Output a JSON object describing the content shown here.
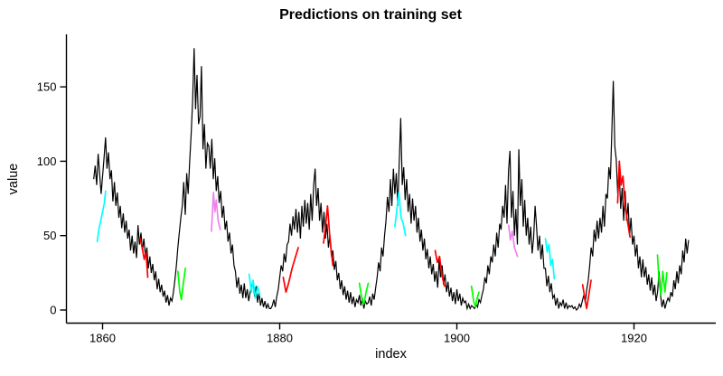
{
  "title": "Predictions on training set",
  "axes": {
    "x_label": "index",
    "y_label": "value"
  },
  "chart_data": {
    "type": "line",
    "title": "Predictions on training set",
    "xlabel": "index",
    "ylabel": "value",
    "xlim": [
      1855.9,
      1929.3
    ],
    "ylim": [
      -8.5,
      185
    ],
    "grid": "off",
    "legend": "none",
    "x_ticks": [
      1860,
      1880,
      1900,
      1920
    ],
    "x_tick_labels": [
      "1860",
      "1880",
      "1900",
      "1920"
    ],
    "y_ticks": [
      0,
      50,
      100,
      150
    ],
    "y_tick_labels": [
      "0",
      "50",
      "100",
      "150"
    ],
    "axis_color": "#000000",
    "main_series": {
      "name": "training-series",
      "color": "#000000",
      "x_start": 1859.0,
      "x_step": 0.166667,
      "values": [
        88,
        97,
        84,
        105,
        92,
        78,
        90,
        102,
        116,
        95,
        106,
        88,
        94,
        73,
        86,
        70,
        79,
        62,
        70,
        55,
        65,
        52,
        60,
        48,
        54,
        40,
        50,
        38,
        46,
        35,
        57,
        44,
        52,
        40,
        48,
        36,
        42,
        28,
        36,
        25,
        31,
        20,
        26,
        14,
        21,
        12,
        17,
        9,
        13,
        5,
        10,
        3,
        8,
        6,
        12,
        20,
        30,
        42,
        52,
        62,
        70,
        86,
        64,
        92,
        78,
        100,
        118,
        140,
        176,
        135,
        158,
        125,
        130,
        164,
        108,
        125,
        95,
        112,
        110,
        95,
        115,
        88,
        102,
        80,
        90,
        72,
        80,
        62,
        70,
        54,
        60,
        46,
        52,
        38,
        44,
        30,
        26,
        15,
        22,
        11,
        17,
        8,
        18,
        8,
        14,
        6,
        12,
        16,
        20,
        9,
        16,
        5,
        12,
        3,
        8,
        2,
        6,
        1,
        4,
        1,
        1,
        3,
        7,
        2,
        9,
        14,
        22,
        30,
        26,
        38,
        32,
        44,
        46,
        58,
        50,
        63,
        54,
        68,
        52,
        66,
        48,
        70,
        56,
        74,
        58,
        72,
        54,
        78,
        60,
        84,
        95,
        70,
        82,
        60,
        72,
        52,
        66,
        48,
        58,
        42,
        50,
        36,
        40,
        27,
        33,
        20,
        25,
        14,
        20,
        10,
        16,
        7,
        13,
        5,
        12,
        4,
        9,
        2,
        7,
        5,
        10,
        3,
        8,
        1,
        6,
        4,
        5,
        9,
        3,
        11,
        7,
        15,
        22,
        32,
        26,
        42,
        36,
        50,
        60,
        76,
        66,
        88,
        70,
        95,
        78,
        92,
        70,
        100,
        129,
        84,
        96,
        74,
        88,
        66,
        78,
        58,
        75,
        60,
        70,
        52,
        62,
        46,
        54,
        40,
        48,
        34,
        41,
        28,
        36,
        24,
        31,
        19,
        26,
        15,
        34,
        22,
        30,
        17,
        24,
        12,
        19,
        9,
        15,
        6,
        12,
        4,
        14,
        6,
        11,
        3,
        8,
        5,
        6,
        1,
        4,
        1,
        3,
        2,
        1,
        4,
        2,
        7,
        5,
        10,
        14,
        22,
        18,
        30,
        24,
        36,
        32,
        44,
        36,
        52,
        42,
        58,
        54,
        70,
        62,
        84,
        58,
        94,
        107,
        62,
        80,
        50,
        68,
        44,
        108,
        70,
        88,
        56,
        74,
        50,
        62,
        44,
        56,
        38,
        48,
        70,
        56,
        40,
        50,
        34,
        44,
        28,
        28,
        16,
        23,
        12,
        18,
        8,
        10,
        3,
        8,
        1,
        5,
        3,
        7,
        1,
        5,
        1,
        3,
        2,
        3,
        1,
        2,
        0,
        1,
        4,
        2,
        6,
        10,
        5,
        14,
        20,
        30,
        42,
        36,
        54,
        46,
        60,
        48,
        62,
        52,
        70,
        56,
        78,
        75,
        96,
        88,
        120,
        154,
        110,
        101,
        78,
        92,
        68,
        82,
        60,
        80,
        60,
        72,
        50,
        62,
        44,
        50,
        36,
        44,
        28,
        36,
        22,
        34,
        22,
        29,
        17,
        24,
        13,
        22,
        10,
        17,
        6,
        12,
        26,
        10,
        2,
        7,
        1,
        5,
        8,
        6,
        12,
        9,
        20,
        14,
        26,
        18,
        30,
        24,
        40,
        32,
        48,
        38,
        47
      ]
    },
    "prediction_segments": [
      {
        "name": "prediction-1860",
        "color": "#00FFFF",
        "points": [
          [
            1859.4,
            46
          ],
          [
            1859.6,
            55
          ],
          [
            1859.8,
            60
          ],
          [
            1860.0,
            66
          ],
          [
            1860.2,
            72
          ],
          [
            1860.35,
            80
          ]
        ]
      },
      {
        "name": "prediction-1864",
        "color": "#FF0000",
        "points": [
          [
            1864.25,
            48
          ],
          [
            1864.5,
            41
          ],
          [
            1864.7,
            34
          ],
          [
            1864.9,
            39
          ],
          [
            1865.1,
            22
          ]
        ]
      },
      {
        "name": "prediction-1868",
        "color": "#00FF00",
        "points": [
          [
            1868.5,
            26
          ],
          [
            1868.72,
            12
          ],
          [
            1868.9,
            7
          ],
          [
            1869.1,
            17
          ],
          [
            1869.35,
            28
          ]
        ]
      },
      {
        "name": "prediction-1872",
        "color": "#EE82EE",
        "points": [
          [
            1872.3,
            53
          ],
          [
            1872.52,
            79
          ],
          [
            1872.68,
            66
          ],
          [
            1872.84,
            74
          ],
          [
            1873.05,
            60
          ],
          [
            1873.3,
            54
          ]
        ]
      },
      {
        "name": "prediction-1877",
        "color": "#00FFFF",
        "points": [
          [
            1876.55,
            24
          ],
          [
            1876.8,
            12
          ],
          [
            1877.0,
            20
          ],
          [
            1877.25,
            8
          ],
          [
            1877.5,
            16
          ],
          [
            1877.75,
            10
          ]
        ]
      },
      {
        "name": "prediction-1881",
        "color": "#FF0000",
        "points": [
          [
            1880.4,
            22
          ],
          [
            1880.7,
            12
          ],
          [
            1881.0,
            18
          ],
          [
            1881.4,
            28
          ],
          [
            1881.75,
            35
          ],
          [
            1882.1,
            42
          ]
        ]
      },
      {
        "name": "prediction-1885",
        "color": "#FF0000",
        "points": [
          [
            1884.95,
            45
          ],
          [
            1885.2,
            58
          ],
          [
            1885.4,
            70
          ],
          [
            1885.62,
            52
          ],
          [
            1885.82,
            40
          ],
          [
            1886.0,
            30
          ]
        ]
      },
      {
        "name": "prediction-1889",
        "color": "#00FF00",
        "points": [
          [
            1889.0,
            18
          ],
          [
            1889.25,
            8
          ],
          [
            1889.5,
            4
          ],
          [
            1889.75,
            12
          ],
          [
            1890.0,
            18
          ]
        ]
      },
      {
        "name": "prediction-1893",
        "color": "#00FFFF",
        "points": [
          [
            1893.0,
            56
          ],
          [
            1893.2,
            66
          ],
          [
            1893.45,
            79
          ],
          [
            1893.7,
            62
          ],
          [
            1893.95,
            58
          ],
          [
            1894.2,
            50
          ]
        ]
      },
      {
        "name": "prediction-1898",
        "color": "#FF0000",
        "points": [
          [
            1897.55,
            40
          ],
          [
            1897.8,
            32
          ],
          [
            1898.05,
            36
          ],
          [
            1898.3,
            24
          ],
          [
            1898.6,
            16
          ]
        ]
      },
      {
        "name": "prediction-1902",
        "color": "#00FF00",
        "points": [
          [
            1901.65,
            16
          ],
          [
            1901.9,
            6
          ],
          [
            1902.1,
            2
          ],
          [
            1902.3,
            8
          ],
          [
            1902.5,
            12
          ]
        ]
      },
      {
        "name": "prediction-1906",
        "color": "#EE82EE",
        "points": [
          [
            1905.85,
            57
          ],
          [
            1906.05,
            47
          ],
          [
            1906.25,
            53
          ],
          [
            1906.5,
            42
          ],
          [
            1906.85,
            36
          ]
        ]
      },
      {
        "name": "prediction-1910",
        "color": "#00FFFF",
        "points": [
          [
            1910.0,
            48
          ],
          [
            1910.2,
            39
          ],
          [
            1910.4,
            44
          ],
          [
            1910.6,
            30
          ],
          [
            1910.8,
            34
          ],
          [
            1911.0,
            21
          ]
        ]
      },
      {
        "name": "prediction-1914",
        "color": "#FF0000",
        "points": [
          [
            1914.2,
            17
          ],
          [
            1914.45,
            8
          ],
          [
            1914.65,
            1
          ],
          [
            1914.9,
            10
          ],
          [
            1915.15,
            20
          ]
        ]
      },
      {
        "name": "prediction-1918",
        "color": "#FF0000",
        "points": [
          [
            1918.15,
            72
          ],
          [
            1918.35,
            100
          ],
          [
            1918.55,
            84
          ],
          [
            1918.75,
            90
          ],
          [
            1919.0,
            70
          ],
          [
            1919.25,
            60
          ],
          [
            1919.55,
            49
          ]
        ]
      },
      {
        "name": "prediction-1923",
        "color": "#00FF00",
        "points": [
          [
            1922.65,
            37
          ],
          [
            1922.85,
            18
          ],
          [
            1923.05,
            10
          ],
          [
            1923.25,
            26
          ],
          [
            1923.5,
            12
          ],
          [
            1923.7,
            25
          ]
        ]
      }
    ]
  },
  "geometry_note": "axis panel: left x=73.5 (y 38..357.5), bottom y=357.5 (x 73..792); x scale 9.8px/yr anchored 1860->113.5; y scale 1.646px/unit anchored 0->343"
}
